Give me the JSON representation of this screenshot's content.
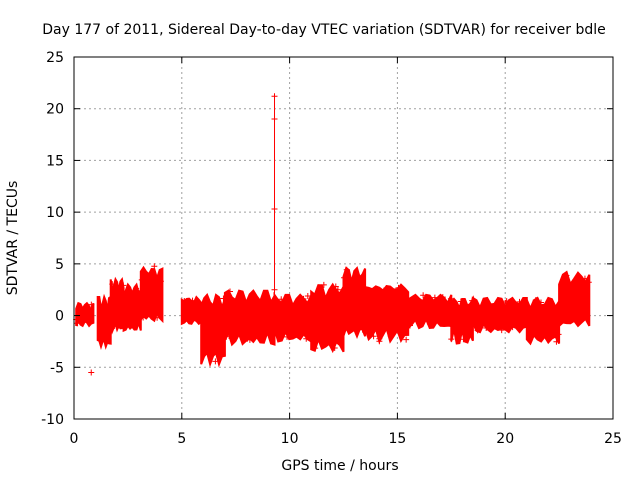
{
  "chart_data": {
    "type": "scatter",
    "title": "Day 177 of 2011, Sidereal Day-to-day VTEC variation (SDTVAR) for receiver bdle",
    "xlabel": "GPS time / hours",
    "ylabel": "SDTVAR / TECUs",
    "xlim": [
      0,
      25
    ],
    "ylim": [
      -10,
      25
    ],
    "xticks": [
      0,
      5,
      10,
      15,
      20,
      25
    ],
    "yticks": [
      -10,
      -5,
      0,
      5,
      10,
      15,
      20,
      25
    ],
    "grid": true,
    "marker": "plus",
    "color": "#ff0000",
    "segments": [
      {
        "x0": 0.1,
        "x1": 0.9,
        "lower": -1.0,
        "upper": 1.2,
        "center": 0.0
      },
      {
        "x0": 1.1,
        "x1": 1.7,
        "lower": -3.0,
        "upper": 1.8,
        "center": -1.0
      },
      {
        "x0": 1.7,
        "x1": 2.3,
        "lower": -1.5,
        "upper": 3.5,
        "center": 1.0
      },
      {
        "x0": 2.3,
        "x1": 3.1,
        "lower": -1.5,
        "upper": 3.0,
        "center": 0.5
      },
      {
        "x0": 3.1,
        "x1": 4.1,
        "lower": -0.5,
        "upper": 4.8,
        "center": 1.5
      },
      {
        "x0": 5.0,
        "x1": 5.9,
        "lower": -0.8,
        "upper": 1.8,
        "center": 0.0
      },
      {
        "x0": 5.9,
        "x1": 7.0,
        "lower": -4.7,
        "upper": 2.0,
        "center": -1.0
      },
      {
        "x0": 7.0,
        "x1": 9.3,
        "lower": -2.8,
        "upper": 2.4,
        "center": 0.0
      },
      {
        "x0": 9.3,
        "x1": 11.0,
        "lower": -2.5,
        "upper": 2.0,
        "center": 0.0
      },
      {
        "x0": 11.0,
        "x1": 12.5,
        "lower": -3.5,
        "upper": 3.0,
        "center": 0.0
      },
      {
        "x0": 12.5,
        "x1": 13.5,
        "lower": -2.0,
        "upper": 4.8,
        "center": 0.5
      },
      {
        "x0": 13.5,
        "x1": 15.5,
        "lower": -2.5,
        "upper": 3.0,
        "center": 1.0
      },
      {
        "x0": 15.5,
        "x1": 17.5,
        "lower": -1.2,
        "upper": 2.0,
        "center": 0.5
      },
      {
        "x0": 17.5,
        "x1": 18.5,
        "lower": -2.7,
        "upper": 1.6,
        "center": 0.0
      },
      {
        "x0": 18.5,
        "x1": 21.0,
        "lower": -1.6,
        "upper": 1.7,
        "center": 0.0
      },
      {
        "x0": 21.0,
        "x1": 22.5,
        "lower": -2.7,
        "upper": 1.7,
        "center": -0.5
      },
      {
        "x0": 22.5,
        "x1": 23.9,
        "lower": -1.0,
        "upper": 4.3,
        "center": 0.5
      }
    ],
    "outliers": [
      {
        "x": 0.8,
        "y": -5.5
      },
      {
        "x": 9.3,
        "y": 21.2
      },
      {
        "x": 9.3,
        "y": 19.0
      },
      {
        "x": 9.3,
        "y": 10.3
      },
      {
        "x": 9.3,
        "y": 2.5
      }
    ],
    "vertical_spikes": [
      {
        "x": 9.3,
        "y0": 0.0,
        "y1": 21.2
      }
    ]
  }
}
